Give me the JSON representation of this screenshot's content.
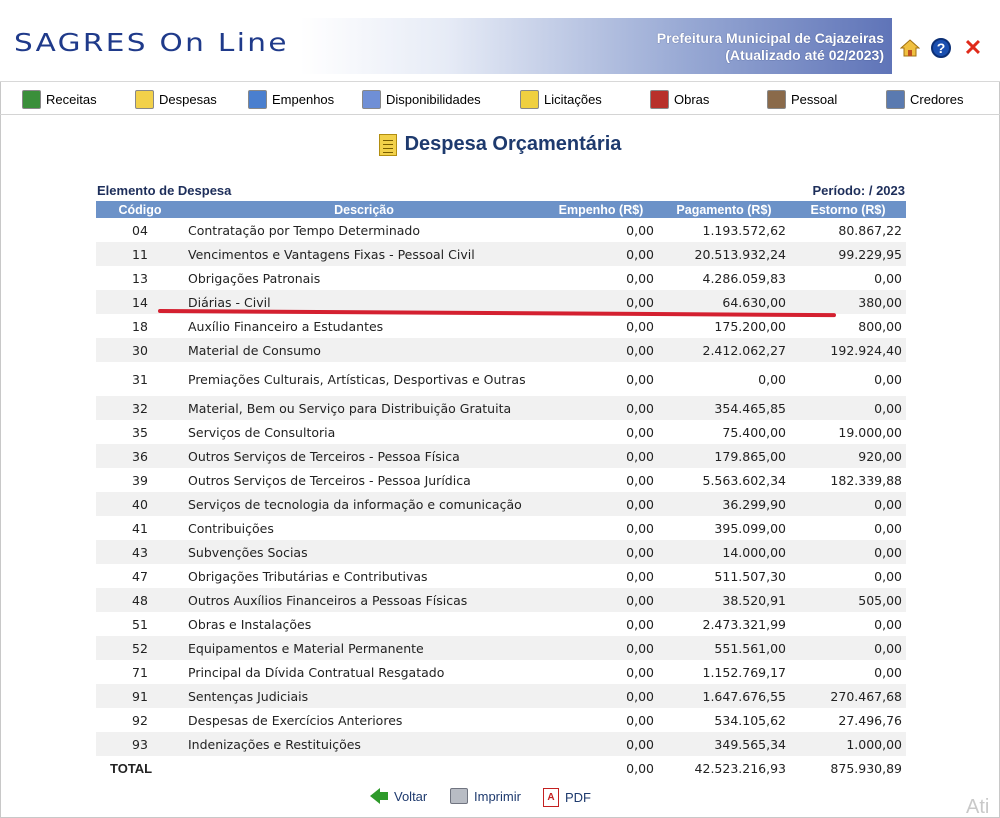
{
  "header": {
    "logo": "SAGRES On Line",
    "banner_line1": "Prefeitura Municipal de Cajazeiras",
    "banner_line2": "(Atualizado até 02/2023)",
    "help_glyph": "?",
    "close_glyph": "✕"
  },
  "menu": [
    {
      "label": "Receitas",
      "icon": "spreadsheet-icon",
      "color": "#3a8f3a"
    },
    {
      "label": "Despesas",
      "icon": "document-icon",
      "color": "#f2d14a"
    },
    {
      "label": "Empenhos",
      "icon": "pencil-icon",
      "color": "#4a7fcf"
    },
    {
      "label": "Disponibilidades",
      "icon": "report-icon",
      "color": "#6f8fd6"
    },
    {
      "label": "Licitações",
      "icon": "notepad-icon",
      "color": "#f0d040"
    },
    {
      "label": "Obras",
      "icon": "construction-icon",
      "color": "#b8302a"
    },
    {
      "label": "Pessoal",
      "icon": "people-icon",
      "color": "#8a6a4a"
    },
    {
      "label": "Credores",
      "icon": "person-icon",
      "color": "#5a7ab0"
    }
  ],
  "page_title": "Despesa Orçamentária",
  "caption_left": "Elemento de Despesa",
  "caption_right": "Período: / 2023",
  "columns": [
    "Código",
    "Descrição",
    "Empenho (R$)",
    "Pagamento (R$)",
    "Estorno (R$)"
  ],
  "rows": [
    {
      "code": "04",
      "desc": "Contratação por Tempo Determinado",
      "emp": "0,00",
      "pag": "1.193.572,62",
      "est": "80.867,22"
    },
    {
      "code": "11",
      "desc": "Vencimentos e Vantagens Fixas - Pessoal Civil",
      "emp": "0,00",
      "pag": "20.513.932,24",
      "est": "99.229,95"
    },
    {
      "code": "13",
      "desc": "Obrigações Patronais",
      "emp": "0,00",
      "pag": "4.286.059,83",
      "est": "0,00"
    },
    {
      "code": "14",
      "desc": "Diárias - Civil",
      "emp": "0,00",
      "pag": "64.630,00",
      "est": "380,00"
    },
    {
      "code": "18",
      "desc": "Auxílio Financeiro a Estudantes",
      "emp": "0,00",
      "pag": "175.200,00",
      "est": "800,00"
    },
    {
      "code": "30",
      "desc": "Material de Consumo",
      "emp": "0,00",
      "pag": "2.412.062,27",
      "est": "192.924,40"
    },
    {
      "code": "31",
      "desc": "Premiações Culturais, Artísticas, Desportivas e Outras",
      "emp": "0,00",
      "pag": "0,00",
      "est": "0,00"
    },
    {
      "code": "32",
      "desc": "Material, Bem ou Serviço para Distribuição Gratuita",
      "emp": "0,00",
      "pag": "354.465,85",
      "est": "0,00"
    },
    {
      "code": "35",
      "desc": "Serviços de Consultoria",
      "emp": "0,00",
      "pag": "75.400,00",
      "est": "19.000,00"
    },
    {
      "code": "36",
      "desc": "Outros Serviços de Terceiros - Pessoa Física",
      "emp": "0,00",
      "pag": "179.865,00",
      "est": "920,00"
    },
    {
      "code": "39",
      "desc": "Outros Serviços de Terceiros - Pessoa Jurídica",
      "emp": "0,00",
      "pag": "5.563.602,34",
      "est": "182.339,88"
    },
    {
      "code": "40",
      "desc": "Serviços de tecnologia da informação e comunicação",
      "emp": "0,00",
      "pag": "36.299,90",
      "est": "0,00"
    },
    {
      "code": "41",
      "desc": "Contribuições",
      "emp": "0,00",
      "pag": "395.099,00",
      "est": "0,00"
    },
    {
      "code": "43",
      "desc": "Subvenções Socias",
      "emp": "0,00",
      "pag": "14.000,00",
      "est": "0,00"
    },
    {
      "code": "47",
      "desc": "Obrigações Tributárias e Contributivas",
      "emp": "0,00",
      "pag": "511.507,30",
      "est": "0,00"
    },
    {
      "code": "48",
      "desc": "Outros Auxílios Financeiros a Pessoas Físicas",
      "emp": "0,00",
      "pag": "38.520,91",
      "est": "505,00"
    },
    {
      "code": "51",
      "desc": "Obras e Instalações",
      "emp": "0,00",
      "pag": "2.473.321,99",
      "est": "0,00"
    },
    {
      "code": "52",
      "desc": "Equipamentos e Material Permanente",
      "emp": "0,00",
      "pag": "551.561,00",
      "est": "0,00"
    },
    {
      "code": "71",
      "desc": "Principal da Dívida Contratual Resgatado",
      "emp": "0,00",
      "pag": "1.152.769,17",
      "est": "0,00"
    },
    {
      "code": "91",
      "desc": "Sentenças Judiciais",
      "emp": "0,00",
      "pag": "1.647.676,55",
      "est": "270.467,68"
    },
    {
      "code": "92",
      "desc": "Despesas de Exercícios Anteriores",
      "emp": "0,00",
      "pag": "534.105,62",
      "est": "27.496,76"
    },
    {
      "code": "93",
      "desc": "Indenizações e Restituições",
      "emp": "0,00",
      "pag": "349.565,34",
      "est": "1.000,00"
    }
  ],
  "total": {
    "label": "TOTAL",
    "emp": "0,00",
    "pag": "42.523.216,93",
    "est": "875.930,89"
  },
  "actions": {
    "back": "Voltar",
    "print": "Imprimir",
    "pdf": "PDF"
  },
  "watermark": "Ati",
  "colors": {
    "table_header": "#6c92c8",
    "highlight_line": "#d42030",
    "title": "#1e3a6e"
  }
}
